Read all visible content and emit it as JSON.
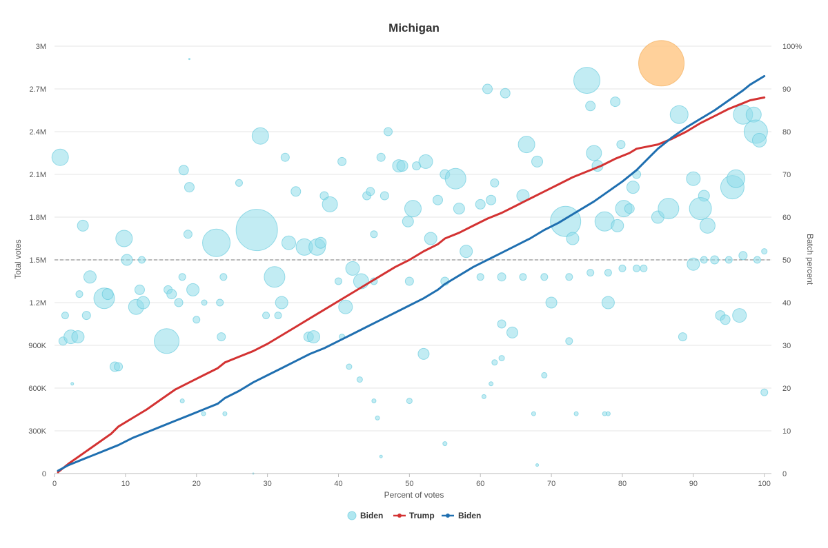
{
  "colors": {
    "bubble": "#8fdde9",
    "bubble_stroke": "#5cc6da",
    "bubble_highlight": "#ffc98a",
    "bubble_highlight_stroke": "#f0a64d",
    "trump": "#d33232",
    "biden": "#1f6fb0",
    "grid": "#e4e4e4",
    "reference": "#777777"
  },
  "chart_data": {
    "type": "scatter",
    "title": "Michigan",
    "xlabel": "Percent of votes",
    "ylabel": "Total votes",
    "y2label": "Batch percent",
    "xlim": [
      0,
      101
    ],
    "ylim": [
      0,
      3000000
    ],
    "y2lim": [
      0,
      100
    ],
    "x_ticks": [
      0,
      10,
      20,
      30,
      40,
      50,
      60,
      70,
      80,
      90,
      100
    ],
    "x_tick_labels": [
      "0",
      "10",
      "20",
      "30",
      "40",
      "50",
      "60",
      "70",
      "80",
      "90",
      "100"
    ],
    "y_ticks": [
      0,
      300000,
      600000,
      900000,
      1200000,
      1500000,
      1800000,
      2100000,
      2400000,
      2700000,
      3000000
    ],
    "y_tick_labels": [
      "0",
      "300K",
      "600K",
      "900K",
      "1.2M",
      "1.5M",
      "1.8M",
      "2.1M",
      "2.4M",
      "2.7M",
      "3M"
    ],
    "y2_ticks": [
      0,
      10,
      20,
      30,
      40,
      50,
      60,
      70,
      80,
      90,
      100
    ],
    "y2_tick_labels": [
      "0",
      "10",
      "20",
      "30",
      "40",
      "50",
      "60",
      "70",
      "80",
      "90",
      "100%"
    ],
    "reference_line": {
      "axis": "y2",
      "value": 50,
      "style": "dashed"
    },
    "grid": true,
    "legend": {
      "position": "bottom-center",
      "items": [
        {
          "label": "Biden",
          "marker": "bubble"
        },
        {
          "label": "Trump",
          "marker": "line"
        },
        {
          "label": "Biden",
          "marker": "line"
        }
      ]
    },
    "series": [
      {
        "name": "Trump",
        "kind": "line",
        "axis": "y",
        "x": [
          0.5,
          2,
          4,
          6,
          8,
          9,
          11,
          13,
          15,
          17,
          19,
          21,
          23,
          24,
          26,
          28,
          30,
          32,
          34,
          36,
          38,
          40,
          42,
          44,
          46,
          48,
          50,
          52,
          54,
          55,
          57,
          59,
          61,
          63,
          65,
          67,
          69,
          71,
          73,
          75,
          77,
          79,
          81,
          82,
          84,
          85,
          87,
          89,
          91,
          93,
          95,
          97,
          98,
          100
        ],
        "values": [
          10000,
          70000,
          140000,
          210000,
          280000,
          330000,
          390000,
          450000,
          520000,
          590000,
          640000,
          690000,
          740000,
          780000,
          820000,
          860000,
          910000,
          970000,
          1030000,
          1090000,
          1150000,
          1210000,
          1270000,
          1330000,
          1390000,
          1450000,
          1500000,
          1560000,
          1610000,
          1650000,
          1690000,
          1740000,
          1790000,
          1830000,
          1880000,
          1930000,
          1980000,
          2030000,
          2080000,
          2120000,
          2160000,
          2210000,
          2250000,
          2280000,
          2300000,
          2310000,
          2350000,
          2400000,
          2460000,
          2510000,
          2560000,
          2600000,
          2620000,
          2640000
        ]
      },
      {
        "name": "Biden",
        "kind": "line",
        "axis": "y",
        "x": [
          0.5,
          2,
          4,
          6,
          8,
          9,
          11,
          13,
          15,
          17,
          19,
          21,
          23,
          24,
          26,
          28,
          30,
          32,
          34,
          36,
          38,
          40,
          42,
          44,
          46,
          48,
          50,
          52,
          54,
          55,
          57,
          59,
          61,
          63,
          65,
          67,
          69,
          71,
          73,
          74,
          76,
          78,
          80,
          82,
          84,
          85,
          87,
          89,
          91,
          93,
          95,
          97,
          98,
          100
        ],
        "values": [
          20000,
          60000,
          100000,
          140000,
          180000,
          200000,
          250000,
          290000,
          330000,
          370000,
          410000,
          450000,
          490000,
          530000,
          580000,
          640000,
          690000,
          740000,
          790000,
          840000,
          880000,
          930000,
          980000,
          1030000,
          1080000,
          1130000,
          1180000,
          1230000,
          1290000,
          1330000,
          1390000,
          1450000,
          1500000,
          1550000,
          1600000,
          1650000,
          1710000,
          1760000,
          1820000,
          1850000,
          1910000,
          1980000,
          2050000,
          2130000,
          2230000,
          2280000,
          2360000,
          2430000,
          2490000,
          2550000,
          2620000,
          2690000,
          2730000,
          2790000
        ]
      },
      {
        "name": "Biden",
        "kind": "bubble",
        "axis": "y2",
        "points": [
          [
            0.8,
            74,
            12
          ],
          [
            1.2,
            31,
            6
          ],
          [
            1.5,
            37,
            5
          ],
          [
            2.3,
            32,
            10
          ],
          [
            3.3,
            32,
            9
          ],
          [
            3.5,
            42,
            5
          ],
          [
            4,
            58,
            8
          ],
          [
            4.5,
            37,
            6
          ],
          [
            5,
            46,
            9
          ],
          [
            7,
            41,
            15
          ],
          [
            7.5,
            42,
            8
          ],
          [
            8.5,
            25,
            7
          ],
          [
            9,
            25,
            6
          ],
          [
            9.8,
            55,
            12
          ],
          [
            10.2,
            50,
            8
          ],
          [
            11.5,
            39,
            11
          ],
          [
            12,
            43,
            7
          ],
          [
            12.5,
            40,
            9
          ],
          [
            12.3,
            50,
            5
          ],
          [
            15.8,
            31,
            18
          ],
          [
            16,
            43,
            6
          ],
          [
            16.5,
            42,
            7
          ],
          [
            17.5,
            40,
            6
          ],
          [
            18,
            46,
            5
          ],
          [
            18.2,
            71,
            7
          ],
          [
            18.8,
            56,
            6
          ],
          [
            19,
            67,
            7
          ],
          [
            19.5,
            43,
            9
          ],
          [
            20,
            36,
            5
          ],
          [
            21.1,
            40,
            4
          ],
          [
            22.8,
            54,
            20
          ],
          [
            23.3,
            40,
            5
          ],
          [
            23.5,
            32,
            6
          ],
          [
            23.8,
            46,
            5
          ],
          [
            26,
            68,
            5
          ],
          [
            28.5,
            57,
            30
          ],
          [
            29,
            79,
            12
          ],
          [
            29.8,
            37,
            5
          ],
          [
            31,
            46,
            15
          ],
          [
            31.5,
            37,
            5
          ],
          [
            32,
            40,
            9
          ],
          [
            32.5,
            74,
            6
          ],
          [
            33,
            54,
            10
          ],
          [
            34,
            66,
            7
          ],
          [
            35.2,
            53,
            12
          ],
          [
            35.8,
            32,
            7
          ],
          [
            36.5,
            32,
            9
          ],
          [
            37,
            53,
            12
          ],
          [
            37.5,
            54,
            8
          ],
          [
            38,
            65,
            6
          ],
          [
            38.8,
            63,
            11
          ],
          [
            40.5,
            73,
            6
          ],
          [
            41,
            39,
            10
          ],
          [
            42,
            48,
            10
          ],
          [
            43.2,
            45,
            11
          ],
          [
            44,
            65,
            6
          ],
          [
            44.5,
            66,
            6
          ],
          [
            45,
            56,
            5
          ],
          [
            46,
            74,
            6
          ],
          [
            46.5,
            65,
            6
          ],
          [
            47,
            80,
            6
          ],
          [
            48.5,
            72,
            9
          ],
          [
            49,
            72,
            8
          ],
          [
            49.8,
            59,
            8
          ],
          [
            50.5,
            62,
            12
          ],
          [
            51,
            72,
            6
          ],
          [
            52,
            28,
            8
          ],
          [
            52.3,
            73,
            10
          ],
          [
            53,
            55,
            9
          ],
          [
            54,
            64,
            7
          ],
          [
            55,
            70,
            7
          ],
          [
            56.5,
            69,
            15
          ],
          [
            57,
            62,
            8
          ],
          [
            58,
            52,
            9
          ],
          [
            60,
            63,
            7
          ],
          [
            61,
            90,
            7
          ],
          [
            61.5,
            64,
            7
          ],
          [
            62,
            68,
            6
          ],
          [
            63,
            35,
            6
          ],
          [
            63.5,
            89,
            7
          ],
          [
            64.5,
            33,
            8
          ],
          [
            66,
            65,
            9
          ],
          [
            66.5,
            77,
            12
          ],
          [
            68,
            73,
            8
          ],
          [
            70,
            40,
            8
          ],
          [
            72,
            59,
            22
          ],
          [
            73,
            55,
            9
          ],
          [
            75,
            92,
            19
          ],
          [
            75.5,
            86,
            7
          ],
          [
            76,
            75,
            11
          ],
          [
            76.5,
            72,
            8
          ],
          [
            77.5,
            59,
            14
          ],
          [
            78,
            40,
            9
          ],
          [
            79,
            87,
            7
          ],
          [
            79.3,
            58,
            9
          ],
          [
            79.8,
            77,
            6
          ],
          [
            80.2,
            62,
            12
          ],
          [
            81,
            62,
            7
          ],
          [
            81.5,
            67,
            9
          ],
          [
            82,
            70,
            6
          ],
          [
            85,
            60,
            9
          ],
          [
            86.5,
            62,
            15
          ],
          [
            88,
            84,
            13
          ],
          [
            88.5,
            32,
            6
          ],
          [
            90,
            69,
            10
          ],
          [
            91.5,
            65,
            8
          ],
          [
            91,
            62,
            16
          ],
          [
            92,
            58,
            11
          ],
          [
            93.8,
            37,
            7
          ],
          [
            94.5,
            36,
            7
          ],
          [
            95.5,
            67,
            17
          ],
          [
            96,
            69,
            13
          ],
          [
            96.5,
            37,
            10
          ],
          [
            97,
            84,
            14
          ],
          [
            98.5,
            84,
            11
          ],
          [
            98.8,
            80,
            17
          ],
          [
            99.3,
            78,
            10
          ],
          [
            100,
            19,
            5
          ],
          [
            100,
            52,
            4
          ],
          [
            90,
            49,
            9
          ],
          [
            91.5,
            50,
            5
          ],
          [
            93,
            50,
            6
          ],
          [
            95,
            50,
            5
          ],
          [
            97,
            51,
            6
          ],
          [
            99,
            50,
            5
          ],
          [
            66,
            46,
            5
          ],
          [
            69,
            46,
            5
          ],
          [
            72.5,
            46,
            5
          ],
          [
            75.5,
            47,
            5
          ],
          [
            78,
            47,
            5
          ],
          [
            80,
            48,
            5
          ],
          [
            82,
            48,
            5
          ],
          [
            83,
            48,
            5
          ],
          [
            40,
            45,
            5
          ],
          [
            45,
            45,
            5
          ],
          [
            50,
            45,
            6
          ],
          [
            55,
            45,
            6
          ],
          [
            60,
            46,
            5
          ],
          [
            63,
            46,
            6
          ],
          [
            2.5,
            21,
            2
          ],
          [
            18,
            17,
            3
          ],
          [
            21,
            14,
            3
          ],
          [
            24,
            14,
            3
          ],
          [
            40.5,
            32,
            4
          ],
          [
            41.5,
            25,
            4
          ],
          [
            43,
            22,
            4
          ],
          [
            45,
            17,
            3
          ],
          [
            45.5,
            13,
            3
          ],
          [
            46,
            4,
            2
          ],
          [
            50,
            17,
            4
          ],
          [
            55,
            7,
            3
          ],
          [
            60.5,
            18,
            3
          ],
          [
            61.5,
            21,
            3
          ],
          [
            62,
            26,
            4
          ],
          [
            63,
            27,
            4
          ],
          [
            67.5,
            14,
            3
          ],
          [
            68,
            2,
            2
          ],
          [
            69,
            23,
            4
          ],
          [
            72.5,
            31,
            5
          ],
          [
            73.5,
            14,
            3
          ],
          [
            77.5,
            14,
            3
          ],
          [
            78,
            14,
            3
          ],
          [
            19,
            97,
            1
          ],
          [
            28,
            0,
            1
          ]
        ]
      },
      {
        "name": "Biden",
        "kind": "bubble",
        "axis": "y2",
        "highlight": true,
        "points": [
          [
            85.5,
            96,
            33
          ]
        ]
      }
    ]
  }
}
